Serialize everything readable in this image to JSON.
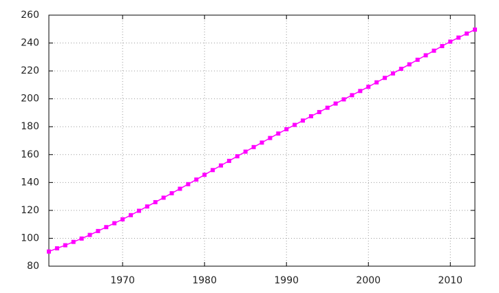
{
  "chart_data": {
    "type": "line",
    "x": [
      1961,
      1962,
      1963,
      1964,
      1965,
      1966,
      1967,
      1968,
      1969,
      1970,
      1971,
      1972,
      1973,
      1974,
      1975,
      1976,
      1977,
      1978,
      1979,
      1980,
      1981,
      1982,
      1983,
      1984,
      1985,
      1986,
      1987,
      1988,
      1989,
      1990,
      1991,
      1992,
      1993,
      1994,
      1995,
      1996,
      1997,
      1998,
      1999,
      2000,
      2001,
      2002,
      2003,
      2004,
      2005,
      2006,
      2007,
      2008,
      2009,
      2010,
      2011,
      2012,
      2013
    ],
    "series": [
      {
        "color": "#ff00ff",
        "values": [
          90.5,
          92.8,
          95.0,
          97.4,
          99.8,
          102.4,
          105.2,
          108.0,
          110.8,
          113.6,
          116.6,
          119.7,
          122.8,
          125.9,
          129.1,
          132.3,
          135.5,
          138.8,
          142.1,
          145.5,
          148.9,
          152.2,
          155.5,
          158.8,
          162.1,
          165.4,
          168.6,
          171.9,
          175.1,
          178.2,
          181.3,
          184.4,
          187.5,
          190.5,
          193.6,
          196.6,
          199.6,
          202.6,
          205.6,
          208.6,
          211.8,
          215.0,
          218.2,
          221.5,
          224.7,
          228.0,
          231.2,
          234.5,
          237.8,
          241.0,
          243.9,
          246.8,
          249.6
        ]
      }
    ],
    "xlim": [
      1961,
      2013
    ],
    "xticks": [
      1970,
      1980,
      1990,
      2000,
      2010
    ],
    "ylim": [
      80,
      260
    ],
    "yticks": [
      80,
      100,
      120,
      140,
      160,
      180,
      200,
      220,
      240,
      260
    ],
    "grid": true
  }
}
